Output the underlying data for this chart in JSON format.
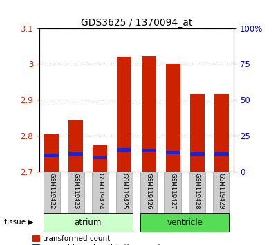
{
  "title": "GDS3625 / 1370094_at",
  "samples": [
    "GSM119422",
    "GSM119423",
    "GSM119424",
    "GSM119425",
    "GSM119426",
    "GSM119427",
    "GSM119428",
    "GSM119429"
  ],
  "transformed_count": [
    2.805,
    2.845,
    2.775,
    3.02,
    3.022,
    3.0,
    2.915,
    2.915
  ],
  "percentile_rank_axis": [
    2.745,
    2.75,
    2.74,
    2.76,
    2.758,
    2.752,
    2.748,
    2.748
  ],
  "ylim_left": [
    2.7,
    3.1
  ],
  "ylim_right": [
    0,
    100
  ],
  "right_ticks": [
    0,
    25,
    50,
    75,
    100
  ],
  "right_tick_labels": [
    "0",
    "25",
    "50",
    "75",
    "100%"
  ],
  "left_ticks": [
    2.7,
    2.8,
    2.9,
    3.0,
    3.1
  ],
  "left_tick_labels": [
    "2.7",
    "2.8",
    "2.9",
    "3",
    "3.1"
  ],
  "groups": [
    {
      "name": "atrium",
      "indices": [
        0,
        1,
        2,
        3
      ],
      "color": "#ccffcc"
    },
    {
      "name": "ventricle",
      "indices": [
        4,
        5,
        6,
        7
      ],
      "color": "#55dd55"
    }
  ],
  "bar_color": "#cc2200",
  "percentile_color": "#2222cc",
  "base_value": 2.7,
  "background_color": "#ffffff",
  "grid_color": "#333333",
  "tick_label_color_left": "#cc2200",
  "tick_label_color_right": "#0000cc",
  "bar_width": 0.6,
  "label_box_color": "#cccccc",
  "label_box_edge": "#aaaaaa"
}
